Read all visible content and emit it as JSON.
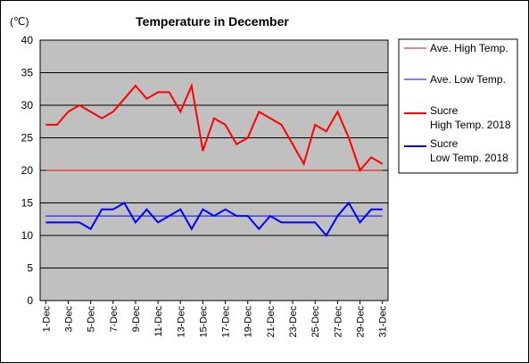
{
  "chart_data": {
    "type": "line",
    "title": "Temperature in December",
    "unit_label": "(℃)",
    "ylim": [
      0,
      40
    ],
    "y_ticks": [
      0,
      5,
      10,
      15,
      20,
      25,
      30,
      35,
      40
    ],
    "grid": true,
    "legend_position": "right",
    "plot_background": "#c0c0c0",
    "categories": [
      "1-Dec",
      "2-Dec",
      "3-Dec",
      "4-Dec",
      "5-Dec",
      "6-Dec",
      "7-Dec",
      "8-Dec",
      "9-Dec",
      "10-Dec",
      "11-Dec",
      "12-Dec",
      "13-Dec",
      "14-Dec",
      "15-Dec",
      "16-Dec",
      "17-Dec",
      "18-Dec",
      "19-Dec",
      "20-Dec",
      "21-Dec",
      "22-Dec",
      "23-Dec",
      "24-Dec",
      "25-Dec",
      "26-Dec",
      "27-Dec",
      "28-Dec",
      "29-Dec",
      "30-Dec",
      "31-Dec"
    ],
    "x_tick_labels": [
      "1-Dec",
      "3-Dec",
      "5-Dec",
      "7-Dec",
      "9-Dec",
      "11-Dec",
      "13-Dec",
      "15-Dec",
      "17-Dec",
      "19-Dec",
      "21-Dec",
      "23-Dec",
      "25-Dec",
      "27-Dec",
      "29-Dec",
      "31-Dec"
    ],
    "series": [
      {
        "name": "Ave. High Temp.",
        "kind": "constant",
        "value": 20,
        "color": "#ff0000",
        "width": 1
      },
      {
        "name": "Ave. Low Temp.",
        "kind": "constant",
        "value": 13,
        "color": "#0000ff",
        "width": 1
      },
      {
        "name": "Sucre\nHigh Temp. 2018",
        "kind": "daily",
        "color": "#ff0000",
        "width": 2,
        "values": [
          27,
          27,
          29,
          30,
          29,
          28,
          29,
          31,
          33,
          31,
          32,
          32,
          29,
          33,
          23,
          28,
          27,
          24,
          25,
          29,
          28,
          27,
          24,
          21,
          27,
          26,
          29,
          25,
          20,
          22,
          21
        ]
      },
      {
        "name": "Sucre\nLow Temp. 2018",
        "kind": "daily",
        "color": "#0000ff",
        "width": 2,
        "values": [
          12,
          12,
          12,
          12,
          11,
          14,
          14,
          15,
          12,
          14,
          12,
          13,
          14,
          11,
          14,
          13,
          14,
          13,
          13,
          11,
          13,
          12,
          12,
          12,
          12,
          10,
          13,
          15,
          12,
          14,
          14
        ]
      }
    ]
  }
}
